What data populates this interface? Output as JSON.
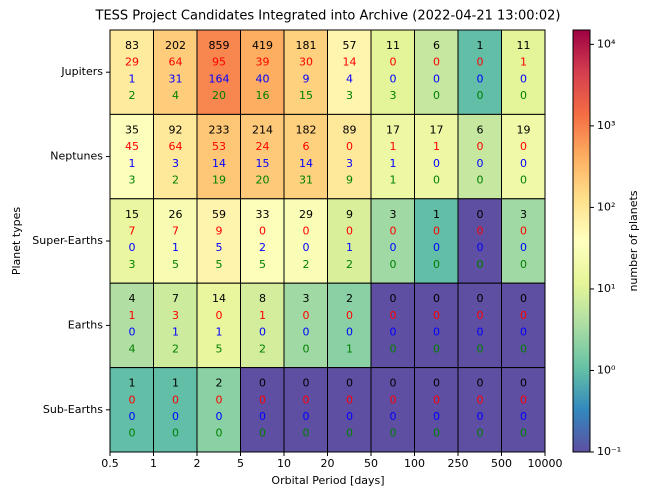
{
  "chart_data": {
    "type": "heatmap",
    "title": "TESS Project Candidates Integrated into Archive (2022-04-21 13:00:02)",
    "xlabel": "Orbital Period [days]",
    "ylabel": "Planet types",
    "colorbar_label": "number of planets",
    "bin_edges": [
      0.5,
      1,
      2,
      5,
      10,
      20,
      50,
      100,
      250,
      500,
      10000
    ],
    "rows": [
      "Jupiters",
      "Neptunes",
      "Super-Earths",
      "Earths",
      "Sub-Earths"
    ],
    "series": [
      {
        "color": "#000000",
        "values": [
          [
            83,
            202,
            859,
            419,
            181,
            57,
            11,
            6,
            1,
            11
          ],
          [
            35,
            92,
            233,
            214,
            182,
            89,
            17,
            17,
            6,
            19
          ],
          [
            15,
            26,
            59,
            33,
            29,
            9,
            3,
            1,
            0,
            3
          ],
          [
            4,
            7,
            14,
            8,
            3,
            2,
            0,
            0,
            0,
            0
          ],
          [
            1,
            1,
            2,
            0,
            0,
            0,
            0,
            0,
            0,
            0
          ]
        ]
      },
      {
        "color": "#ff0000",
        "values": [
          [
            29,
            64,
            95,
            39,
            30,
            14,
            0,
            0,
            0,
            1
          ],
          [
            45,
            64,
            53,
            24,
            6,
            0,
            1,
            1,
            0,
            0
          ],
          [
            7,
            7,
            9,
            0,
            0,
            0,
            0,
            0,
            0,
            0
          ],
          [
            1,
            3,
            0,
            1,
            0,
            0,
            0,
            0,
            0,
            0
          ],
          [
            0,
            0,
            0,
            0,
            0,
            0,
            0,
            0,
            0,
            0
          ]
        ]
      },
      {
        "color": "#0000ff",
        "values": [
          [
            1,
            31,
            164,
            40,
            9,
            4,
            0,
            0,
            0,
            0
          ],
          [
            1,
            3,
            14,
            15,
            14,
            3,
            1,
            0,
            0,
            0
          ],
          [
            0,
            1,
            5,
            2,
            0,
            1,
            0,
            0,
            0,
            0
          ],
          [
            0,
            1,
            1,
            0,
            0,
            0,
            0,
            0,
            0,
            0
          ],
          [
            0,
            0,
            0,
            0,
            0,
            0,
            0,
            0,
            0,
            0
          ]
        ]
      },
      {
        "color": "#008000",
        "values": [
          [
            2,
            4,
            20,
            16,
            15,
            3,
            3,
            0,
            0,
            0
          ],
          [
            3,
            2,
            19,
            20,
            31,
            9,
            1,
            0,
            0,
            0
          ],
          [
            3,
            5,
            5,
            5,
            2,
            2,
            0,
            0,
            0,
            0
          ],
          [
            4,
            2,
            5,
            2,
            0,
            1,
            0,
            0,
            0,
            0
          ],
          [
            0,
            0,
            0,
            0,
            0,
            0,
            0,
            0,
            0,
            0
          ]
        ]
      }
    ],
    "clim": [
      0.1,
      15000
    ],
    "log_color": true,
    "colormap": [
      "#5e4fa2",
      "#3288bd",
      "#66c2a5",
      "#abdda4",
      "#e6f598",
      "#ffffbf",
      "#fee08b",
      "#fdae61",
      "#f46d43",
      "#d53e4f",
      "#9e0142"
    ],
    "cticks": [
      {
        "value": 0.1,
        "label": "10⁻¹"
      },
      {
        "value": 1,
        "label": "10⁰"
      },
      {
        "value": 10,
        "label": "10¹"
      },
      {
        "value": 100,
        "label": "10²"
      },
      {
        "value": 1000,
        "label": "10³"
      },
      {
        "value": 10000,
        "label": "10⁴"
      }
    ]
  }
}
